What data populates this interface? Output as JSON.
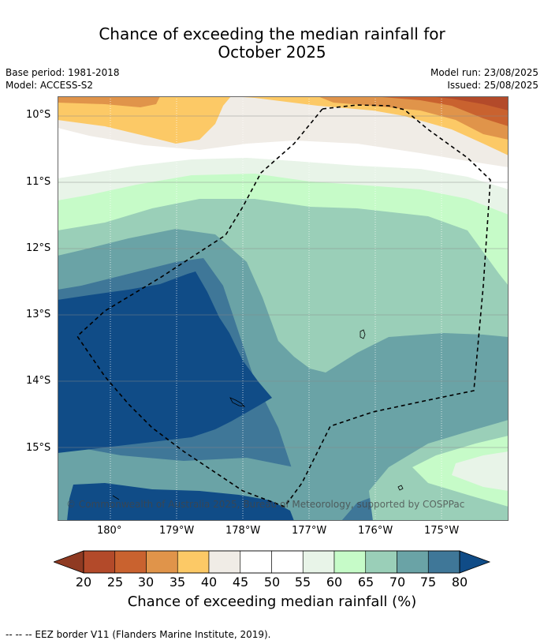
{
  "title": {
    "line1": "Chance of exceeding the median rainfall for",
    "line2": "October 2025"
  },
  "meta": {
    "base_period": "Base period: 1981-2018",
    "model": "Model: ACCESS-S2",
    "model_run": "Model run: 23/08/2025",
    "issued": "Issued: 25/08/2025"
  },
  "axes": {
    "lat_labels": [
      "10°S",
      "11°S",
      "12°S",
      "13°S",
      "14°S",
      "15°S"
    ],
    "lon_labels": [
      "180°",
      "179°W",
      "178°W",
      "177°W",
      "176°W",
      "175°W"
    ]
  },
  "copyright": "© Commonwealth of Australia 2025, Bureau of Meteorology, supported by COSPPac",
  "colorbar": {
    "ticks": [
      "20",
      "25",
      "30",
      "35",
      "40",
      "45",
      "50",
      "55",
      "60",
      "65",
      "70",
      "75",
      "80"
    ],
    "colors": [
      "#b34a2a",
      "#c9622f",
      "#e0944a",
      "#fcc966",
      "#f0ece6",
      "#ffffff",
      "#ffffff",
      "#e8f4e8",
      "#c6fbc8",
      "#9acfb8",
      "#6aa3a6",
      "#3f7798"
    ],
    "low_color": "#8f3a22",
    "high_color": "#104c87",
    "label": "Chance of exceeding median rainfall (%)"
  },
  "footnote": "--  --  -- EEZ border V11 (Flanders Marine Institute, 2019)."
}
